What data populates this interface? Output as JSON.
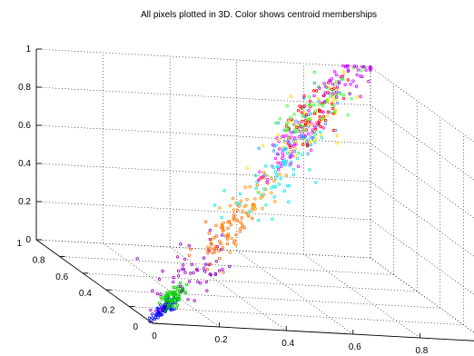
{
  "chart_data": {
    "type": "scatter",
    "title": "All pixels plotted in 3D. Color shows centroid memberships",
    "xlabel": "",
    "ylabel": "",
    "zlabel": "",
    "xlim": [
      0,
      1
    ],
    "ylim": [
      0,
      1
    ],
    "zlim": [
      0,
      1
    ],
    "x_ticks": [
      "0",
      "0.2",
      "0.4",
      "0.6",
      "0.8"
    ],
    "y_ticks": [
      "0",
      "0.2",
      "0.4",
      "0.6",
      "0.8",
      "1"
    ],
    "z_ticks": [
      "0",
      "0.2",
      "0.4",
      "0.6",
      "0.8",
      "1"
    ],
    "grid": true,
    "clusters": [
      {
        "color": "#0000ff",
        "x": 0.05,
        "y": 0.06,
        "z": 0.05
      },
      {
        "color": "#00cc00",
        "x": 0.11,
        "y": 0.13,
        "z": 0.1
      },
      {
        "color": "#9900cc",
        "x": 0.2,
        "y": 0.23,
        "z": 0.19
      },
      {
        "color": "#ff6600",
        "x": 0.33,
        "y": 0.37,
        "z": 0.32
      },
      {
        "color": "#ff8c00",
        "x": 0.47,
        "y": 0.52,
        "z": 0.45
      },
      {
        "color": "#00e5e5",
        "x": 0.58,
        "y": 0.63,
        "z": 0.55
      },
      {
        "color": "#ff00ff",
        "x": 0.66,
        "y": 0.74,
        "z": 0.66
      },
      {
        "color": "#3399ff",
        "x": 0.72,
        "y": 0.8,
        "z": 0.72
      },
      {
        "color": "#ffdd00",
        "x": 0.75,
        "y": 0.83,
        "z": 0.76
      },
      {
        "color": "#ff0000",
        "x": 0.79,
        "y": 0.87,
        "z": 0.8
      },
      {
        "color": "#33ff33",
        "x": 0.8,
        "y": 0.9,
        "z": 0.82
      },
      {
        "color": "#cc00ff",
        "x": 0.92,
        "y": 0.98,
        "z": 0.94
      }
    ]
  }
}
